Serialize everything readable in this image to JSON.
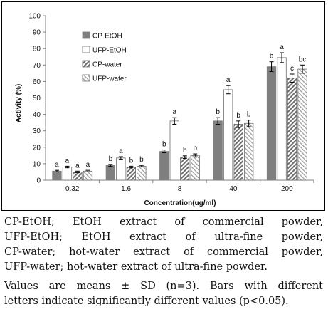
{
  "chart_data": {
    "type": "bar",
    "title": "",
    "xlabel": "Concentration(ug/ml)",
    "ylabel": "Activity (%)",
    "ylim": [
      0,
      100
    ],
    "yticks": [
      0,
      10,
      20,
      30,
      40,
      50,
      60,
      70,
      80,
      90,
      100
    ],
    "grid": false,
    "legend_position": "top-left",
    "categories": [
      "0.32",
      "1.6",
      "8",
      "40",
      "200"
    ],
    "series": [
      {
        "name": "CP-EtOH",
        "pattern": "solid",
        "color": "#7f7f7f",
        "values": [
          5.5,
          9.0,
          17.5,
          36.0,
          69.0
        ],
        "errors": [
          0.5,
          0.6,
          0.8,
          2.0,
          3.0
        ],
        "letters": [
          "a",
          "b",
          "b",
          "b",
          "b"
        ]
      },
      {
        "name": "UFP-EtOH",
        "pattern": "white",
        "color": "#ffffff",
        "values": [
          8.0,
          13.5,
          36.0,
          55.0,
          74.5
        ],
        "errors": [
          0.5,
          0.8,
          2.0,
          2.5,
          3.0
        ],
        "letters": [
          "a",
          "a",
          "a",
          "a",
          "a"
        ]
      },
      {
        "name": "CP-water",
        "pattern": "diagonal",
        "color": "#7f7f7f",
        "values": [
          5.0,
          8.0,
          14.0,
          34.0,
          62.0
        ],
        "errors": [
          0.5,
          0.5,
          0.8,
          2.0,
          2.5
        ],
        "letters": [
          "a",
          "b",
          "b",
          "b",
          "c"
        ]
      },
      {
        "name": "UFP-water",
        "pattern": "diagonal-light",
        "color": "#a6a6a6",
        "values": [
          5.5,
          8.5,
          15.0,
          34.5,
          67.5
        ],
        "errors": [
          0.5,
          0.5,
          1.0,
          2.0,
          2.5
        ],
        "letters": [
          "a",
          "b",
          "b",
          "b",
          "bc"
        ]
      }
    ]
  },
  "caption": {
    "lines": [
      "CP-EtOH; EtOH extract of commercial powder,",
      "UFP-EtOH; EtOH extract of ultra-fine powder,",
      "CP-water; hot-water extract of commercial powder,",
      "UFP-water; hot-water extract of ultra-fine powder."
    ],
    "note_lines": [
      "Values are means ± SD (n=3). Bars with different",
      "letters indicate significantly different values (p<0.05)."
    ]
  }
}
